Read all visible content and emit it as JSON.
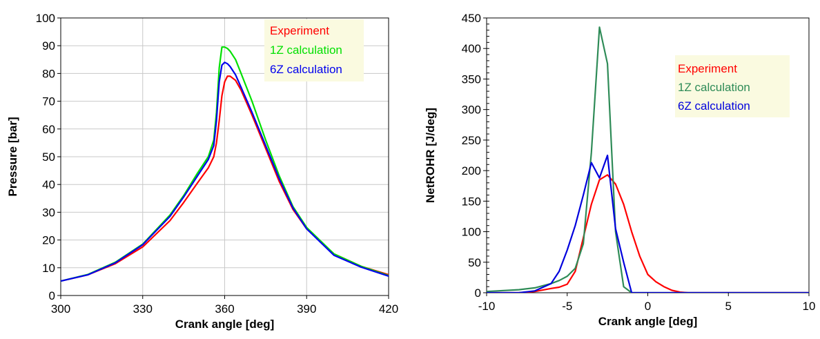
{
  "chart_data": [
    {
      "type": "line",
      "xlabel": "Crank angle [deg]",
      "ylabel": "Pressure [bar]",
      "xlim": [
        300,
        420
      ],
      "ylim": [
        0,
        100
      ],
      "xticks": [
        300,
        330,
        360,
        390,
        420
      ],
      "yticks": [
        0,
        10,
        20,
        30,
        40,
        50,
        60,
        70,
        80,
        90,
        100
      ],
      "grid": true,
      "legend_position": "top-right",
      "series": [
        {
          "name": "Experiment",
          "color": "#ff0000",
          "x": [
            300,
            310,
            320,
            330,
            340,
            345,
            350,
            354,
            356,
            357,
            358,
            359,
            360,
            361,
            362,
            364,
            366,
            370,
            375,
            380,
            385,
            390,
            400,
            410,
            420
          ],
          "y": [
            5.2,
            7.5,
            11.5,
            17.5,
            27,
            33.5,
            40.5,
            46,
            50,
            55,
            63,
            72,
            77,
            79,
            79,
            77.5,
            74,
            65,
            53,
            41,
            31,
            24,
            15,
            10.5,
            7.5
          ]
        },
        {
          "name": "1Z calculation",
          "color": "#00e000",
          "x": [
            300,
            310,
            320,
            330,
            340,
            345,
            350,
            354,
            356,
            357,
            358,
            359,
            360,
            361,
            362,
            364,
            366,
            370,
            375,
            380,
            385,
            390,
            400,
            410,
            420
          ],
          "y": [
            5.2,
            7.6,
            12,
            18.5,
            29,
            36,
            44,
            50,
            56,
            66,
            82,
            89.5,
            89.5,
            89,
            88,
            85,
            80,
            70,
            56,
            43,
            32,
            24.5,
            15,
            10.5,
            7.2
          ]
        },
        {
          "name": "6Z calculation",
          "color": "#0000ee",
          "x": [
            300,
            310,
            320,
            330,
            340,
            345,
            350,
            354,
            356,
            357,
            358,
            359,
            360,
            361,
            362,
            364,
            366,
            370,
            375,
            380,
            385,
            390,
            400,
            410,
            420
          ],
          "y": [
            5.2,
            7.5,
            11.8,
            18.3,
            28.5,
            35.5,
            43,
            49,
            54,
            63,
            77,
            83,
            84,
            83.5,
            82.5,
            79.5,
            75,
            66,
            54,
            42,
            31.5,
            24,
            14.5,
            10.2,
            7
          ]
        }
      ]
    },
    {
      "type": "line",
      "xlabel": "Crank angle [deg]",
      "ylabel": "NetROHR [J/deg]",
      "xlim": [
        -10,
        10
      ],
      "ylim": [
        0,
        450
      ],
      "xticks": [
        -10,
        -5,
        0,
        5,
        10
      ],
      "yticks": [
        0,
        50,
        100,
        150,
        200,
        250,
        300,
        350,
        400,
        450
      ],
      "grid": false,
      "legend_position": "top-right",
      "series": [
        {
          "name": "Experiment",
          "color": "#ff0000",
          "x": [
            -10,
            -8,
            -7,
            -6,
            -5.5,
            -5,
            -4.5,
            -4,
            -3.5,
            -3,
            -2.5,
            -2,
            -1.5,
            -1,
            -0.5,
            0,
            0.5,
            1,
            1.5,
            2,
            2.5,
            3,
            10
          ],
          "y": [
            0,
            0,
            2,
            7,
            9,
            14,
            35,
            90,
            145,
            185,
            193,
            178,
            145,
            100,
            60,
            30,
            18,
            10,
            4,
            1,
            0,
            0,
            0
          ]
        },
        {
          "name": "1Z calculation",
          "color": "#2e8b57",
          "x": [
            -10,
            -8,
            -7,
            -6,
            -5.5,
            -5,
            -4.5,
            -4,
            -3.5,
            -3,
            -2.5,
            -2,
            -1.5,
            -1,
            10
          ],
          "y": [
            2,
            5,
            8,
            15,
            20,
            27,
            40,
            80,
            230,
            435,
            375,
            100,
            10,
            0,
            0
          ]
        },
        {
          "name": "6Z calculation",
          "color": "#0000dd",
          "x": [
            -10,
            -8,
            -7,
            -6,
            -5.5,
            -5,
            -4.5,
            -4,
            -3.5,
            -3,
            -2.5,
            -2,
            -1.5,
            -1,
            10
          ],
          "y": [
            0,
            0,
            3,
            15,
            35,
            70,
            110,
            160,
            213,
            188,
            225,
            105,
            50,
            0,
            0
          ]
        }
      ]
    }
  ]
}
